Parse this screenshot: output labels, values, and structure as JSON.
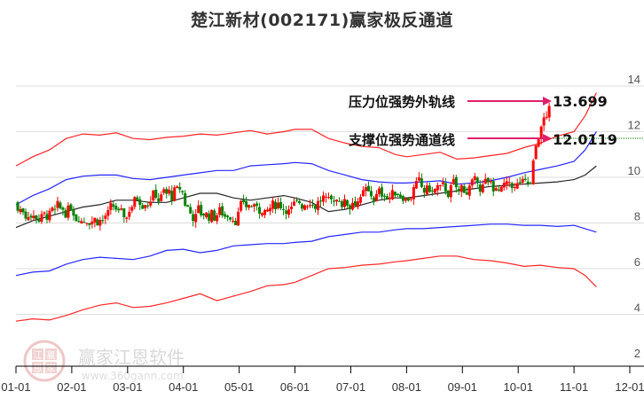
{
  "title": "楚江新材(002171)赢家极反通道",
  "watermark": {
    "seal_chars": [
      "江",
      "赢",
      "恩",
      "家"
    ],
    "text": "赢家江恩软件",
    "url": "www.360gann.com"
  },
  "annotations": {
    "upper": {
      "label": "压力位强势外轨线",
      "value": "13.699"
    },
    "lower": {
      "label": "支撑位强势通道线",
      "value": "12.0119"
    }
  },
  "colors": {
    "up": "#ff0000",
    "down": "#008000",
    "upper_outer": "#ff0000",
    "upper_inner": "#0000ff",
    "middle": "#000000",
    "lower_inner": "#0000ff",
    "lower_outer": "#ff0000",
    "arrow": "#e0206a",
    "support_line": "#008000",
    "grid": "#dddddd",
    "axis": "#000000"
  },
  "chart_data": {
    "type": "candlestick",
    "title": "楚江新材(002171)赢家极反通道",
    "xlabel": "",
    "ylabel": "",
    "ylim": [
      2,
      14
    ],
    "y_ticks": [
      2,
      4,
      6,
      8,
      10,
      12,
      14
    ],
    "x_ticks": [
      "01-01",
      "02-01",
      "03-01",
      "04-01",
      "05-01",
      "06-01",
      "07-01",
      "08-01",
      "09-01",
      "10-01",
      "11-01",
      "12-01"
    ],
    "grid": true,
    "legend": "none",
    "annotations": [
      {
        "text": "压力位强势外轨线",
        "value": 13.699
      },
      {
        "text": "支撑位强势通道线",
        "value": 12.0119
      }
    ],
    "series": [
      {
        "name": "upper_outer_band",
        "color": "red",
        "points": [
          [
            0,
            10.5
          ],
          [
            0.3,
            10.9
          ],
          [
            0.6,
            11.2
          ],
          [
            0.9,
            11.7
          ],
          [
            1.2,
            11.9
          ],
          [
            1.5,
            11.85
          ],
          [
            1.8,
            11.95
          ],
          [
            2.1,
            11.7
          ],
          [
            2.4,
            11.65
          ],
          [
            2.7,
            11.75
          ],
          [
            3.0,
            11.8
          ],
          [
            3.3,
            11.9
          ],
          [
            3.6,
            11.85
          ],
          [
            3.9,
            11.95
          ],
          [
            4.2,
            12.05
          ],
          [
            4.5,
            11.9
          ],
          [
            4.8,
            12.0
          ],
          [
            5.0,
            12.1
          ],
          [
            5.3,
            12.1
          ],
          [
            5.6,
            11.7
          ],
          [
            5.9,
            11.5
          ],
          [
            6.2,
            11.35
          ],
          [
            6.5,
            11.3
          ],
          [
            6.8,
            11.0
          ],
          [
            7.0,
            10.9
          ],
          [
            7.3,
            11.0
          ],
          [
            7.6,
            11.1
          ],
          [
            7.9,
            10.8
          ],
          [
            8.2,
            10.85
          ],
          [
            8.5,
            10.95
          ],
          [
            8.8,
            11.05
          ],
          [
            9.1,
            11.3
          ],
          [
            9.4,
            11.5
          ],
          [
            9.7,
            11.8
          ],
          [
            10.0,
            12.0
          ],
          [
            10.2,
            12.7
          ],
          [
            10.4,
            13.7
          ]
        ]
      },
      {
        "name": "upper_inner_band",
        "color": "blue",
        "points": [
          [
            0,
            8.8
          ],
          [
            0.3,
            9.2
          ],
          [
            0.6,
            9.5
          ],
          [
            0.9,
            9.9
          ],
          [
            1.2,
            10.05
          ],
          [
            1.5,
            10.1
          ],
          [
            1.8,
            10.1
          ],
          [
            2.1,
            9.95
          ],
          [
            2.4,
            9.9
          ],
          [
            2.7,
            10.0
          ],
          [
            3.0,
            10.1
          ],
          [
            3.3,
            10.2
          ],
          [
            3.6,
            10.3
          ],
          [
            3.9,
            10.3
          ],
          [
            4.2,
            10.5
          ],
          [
            4.5,
            10.55
          ],
          [
            4.8,
            10.6
          ],
          [
            5.0,
            10.65
          ],
          [
            5.3,
            10.6
          ],
          [
            5.6,
            10.3
          ],
          [
            5.9,
            10.1
          ],
          [
            6.2,
            9.9
          ],
          [
            6.5,
            9.8
          ],
          [
            6.8,
            9.75
          ],
          [
            7.0,
            9.75
          ],
          [
            7.3,
            9.8
          ],
          [
            7.6,
            9.85
          ],
          [
            7.9,
            9.7
          ],
          [
            8.2,
            9.75
          ],
          [
            8.5,
            9.85
          ],
          [
            8.8,
            10.0
          ],
          [
            9.1,
            10.2
          ],
          [
            9.4,
            10.35
          ],
          [
            9.7,
            10.5
          ],
          [
            10.0,
            10.7
          ],
          [
            10.2,
            11.2
          ],
          [
            10.4,
            12.0
          ]
        ]
      },
      {
        "name": "middle_line",
        "color": "black",
        "points": [
          [
            0,
            7.8
          ],
          [
            0.3,
            8.1
          ],
          [
            0.6,
            8.3
          ],
          [
            0.9,
            8.5
          ],
          [
            1.2,
            8.7
          ],
          [
            1.5,
            8.8
          ],
          [
            1.8,
            9.0
          ],
          [
            2.1,
            9.0
          ],
          [
            2.4,
            8.9
          ],
          [
            2.7,
            8.9
          ],
          [
            3.0,
            9.1
          ],
          [
            3.3,
            9.3
          ],
          [
            3.6,
            9.3
          ],
          [
            3.9,
            9.1
          ],
          [
            4.2,
            9.0
          ],
          [
            4.5,
            9.1
          ],
          [
            4.8,
            9.2
          ],
          [
            5.0,
            9.1
          ],
          [
            5.3,
            8.9
          ],
          [
            5.6,
            8.5
          ],
          [
            5.9,
            8.6
          ],
          [
            6.2,
            8.8
          ],
          [
            6.5,
            9.0
          ],
          [
            6.8,
            9.1
          ],
          [
            7.0,
            9.1
          ],
          [
            7.3,
            9.2
          ],
          [
            7.6,
            9.3
          ],
          [
            7.9,
            9.4
          ],
          [
            8.2,
            9.5
          ],
          [
            8.5,
            9.6
          ],
          [
            8.8,
            9.65
          ],
          [
            9.1,
            9.7
          ],
          [
            9.4,
            9.75
          ],
          [
            9.7,
            9.8
          ],
          [
            10.0,
            9.9
          ],
          [
            10.2,
            10.1
          ],
          [
            10.4,
            10.5
          ]
        ]
      },
      {
        "name": "lower_inner_band",
        "color": "blue",
        "points": [
          [
            0,
            5.7
          ],
          [
            0.3,
            5.85
          ],
          [
            0.6,
            5.9
          ],
          [
            0.9,
            6.2
          ],
          [
            1.2,
            6.4
          ],
          [
            1.5,
            6.5
          ],
          [
            1.8,
            6.45
          ],
          [
            2.1,
            6.4
          ],
          [
            2.4,
            6.55
          ],
          [
            2.7,
            6.8
          ],
          [
            3.0,
            6.85
          ],
          [
            3.3,
            6.7
          ],
          [
            3.6,
            6.8
          ],
          [
            3.9,
            7.0
          ],
          [
            4.2,
            7.05
          ],
          [
            4.5,
            7.1
          ],
          [
            4.8,
            7.1
          ],
          [
            5.0,
            7.15
          ],
          [
            5.3,
            7.2
          ],
          [
            5.6,
            7.4
          ],
          [
            5.9,
            7.5
          ],
          [
            6.2,
            7.6
          ],
          [
            6.5,
            7.6
          ],
          [
            6.8,
            7.7
          ],
          [
            7.0,
            7.75
          ],
          [
            7.3,
            7.75
          ],
          [
            7.6,
            7.8
          ],
          [
            7.9,
            7.85
          ],
          [
            8.2,
            7.9
          ],
          [
            8.5,
            7.95
          ],
          [
            8.8,
            7.95
          ],
          [
            9.1,
            7.9
          ],
          [
            9.4,
            7.9
          ],
          [
            9.7,
            7.85
          ],
          [
            10.0,
            7.9
          ],
          [
            10.2,
            7.75
          ],
          [
            10.4,
            7.6
          ]
        ]
      },
      {
        "name": "lower_outer_band",
        "color": "red",
        "points": [
          [
            0,
            3.7
          ],
          [
            0.3,
            3.8
          ],
          [
            0.6,
            3.75
          ],
          [
            0.9,
            3.95
          ],
          [
            1.2,
            4.2
          ],
          [
            1.5,
            4.4
          ],
          [
            1.8,
            4.5
          ],
          [
            2.1,
            4.3
          ],
          [
            2.4,
            4.35
          ],
          [
            2.7,
            4.5
          ],
          [
            3.0,
            4.7
          ],
          [
            3.3,
            4.9
          ],
          [
            3.6,
            4.6
          ],
          [
            3.9,
            4.8
          ],
          [
            4.2,
            5.0
          ],
          [
            4.5,
            5.25
          ],
          [
            4.8,
            5.3
          ],
          [
            5.0,
            5.4
          ],
          [
            5.3,
            5.7
          ],
          [
            5.6,
            6.0
          ],
          [
            5.9,
            6.05
          ],
          [
            6.2,
            6.15
          ],
          [
            6.5,
            6.2
          ],
          [
            6.8,
            6.3
          ],
          [
            7.0,
            6.35
          ],
          [
            7.3,
            6.45
          ],
          [
            7.6,
            6.55
          ],
          [
            7.9,
            6.55
          ],
          [
            8.2,
            6.4
          ],
          [
            8.5,
            6.35
          ],
          [
            8.8,
            6.25
          ],
          [
            9.1,
            6.1
          ],
          [
            9.4,
            6.15
          ],
          [
            9.7,
            6.05
          ],
          [
            10.0,
            6.0
          ],
          [
            10.2,
            5.7
          ],
          [
            10.4,
            5.2
          ]
        ]
      }
    ],
    "candles_monthly_summary": [
      {
        "month": "01",
        "low": 7.7,
        "high": 9.2
      },
      {
        "month": "02",
        "low": 7.6,
        "high": 9.1
      },
      {
        "month": "03",
        "low": 8.3,
        "high": 10.2
      },
      {
        "month": "04",
        "low": 7.5,
        "high": 9.5
      },
      {
        "month": "05",
        "low": 8.3,
        "high": 9.2
      },
      {
        "month": "06",
        "low": 8.4,
        "high": 9.6
      },
      {
        "month": "07",
        "low": 8.6,
        "high": 9.8
      },
      {
        "month": "08",
        "low": 8.6,
        "high": 10.3
      },
      {
        "month": "09",
        "low": 9.1,
        "high": 10.1
      },
      {
        "month": "10",
        "low": 9.3,
        "high": 13.7
      }
    ]
  }
}
